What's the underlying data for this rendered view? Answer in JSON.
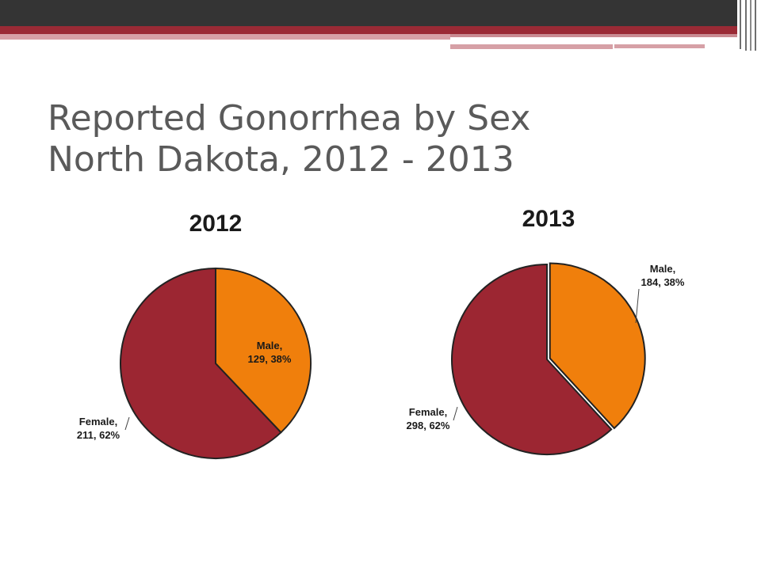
{
  "slide": {
    "title_line1": "Reported Gonorrhea by Sex",
    "title_line2": "North Dakota, 2012 - 2013"
  },
  "colors": {
    "male": "#f07f0c",
    "female": "#9c2632",
    "outline": "#222222",
    "header_dark": "#343434",
    "header_red": "#9a2a35"
  },
  "chart_data": [
    {
      "type": "pie",
      "title": "2012",
      "slices": [
        {
          "label": "Male",
          "value": 129,
          "percent": 38,
          "line1": "Male,",
          "line2": "129, 38%"
        },
        {
          "label": "Female",
          "value": 211,
          "percent": 62,
          "line1": "Female,",
          "line2": "211, 62%"
        }
      ]
    },
    {
      "type": "pie",
      "title": "2013",
      "slices": [
        {
          "label": "Male",
          "value": 184,
          "percent": 38,
          "line1": "Male,",
          "line2": "184, 38%"
        },
        {
          "label": "Female",
          "value": 298,
          "percent": 62,
          "line1": "Female,",
          "line2": "298, 62%"
        }
      ]
    }
  ]
}
